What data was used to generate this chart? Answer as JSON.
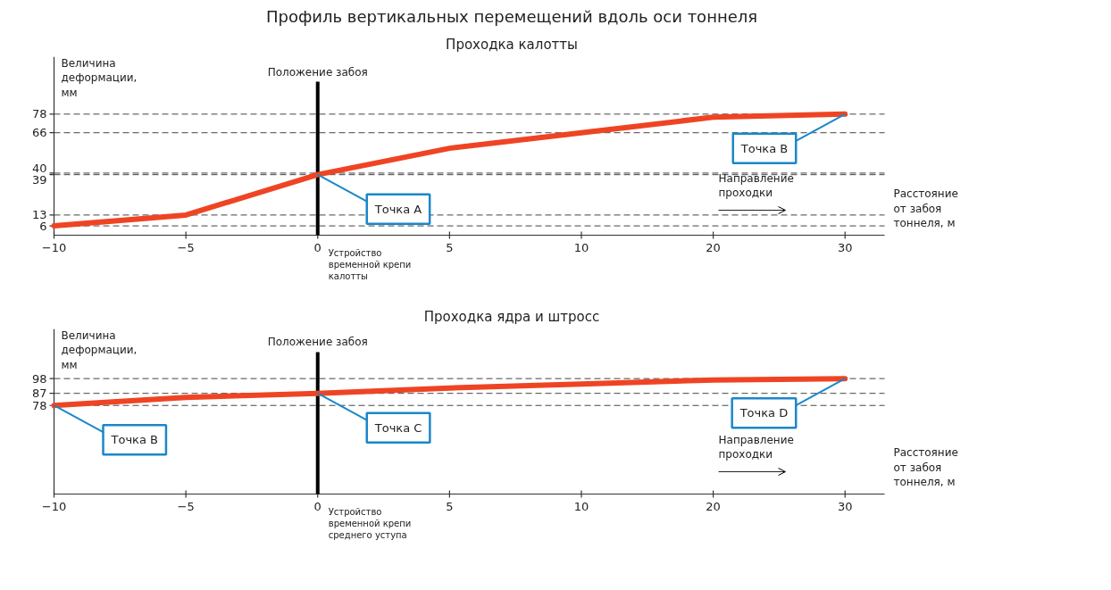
{
  "chart_data": [
    {
      "type": "line",
      "title": "Профиль вертикальных перемещений вдоль оси тоннеля",
      "subtitle": "Проходка калотты",
      "xlabel": "Расстояние от забоя тоннеля, м",
      "ylabel": "Величина деформации, мм",
      "categories": [
        "−10",
        "−5",
        "0",
        "5",
        "10",
        "20",
        "30"
      ],
      "series": [
        {
          "color": "#ef4423",
          "values": [
            6,
            13,
            39,
            56,
            66,
            76,
            78
          ]
        }
      ],
      "ylim": [
        0,
        115
      ],
      "yticks": [
        6,
        13,
        39,
        40,
        66,
        78
      ],
      "grid": "y",
      "ref_lines": [
        {
          "axis": "x",
          "value": "0",
          "label": "Положение забоя",
          "color": "#000000"
        }
      ],
      "annotations": [
        {
          "text": "Точка А",
          "x": "0",
          "y": 39
        },
        {
          "text": "Точка В",
          "x": "30",
          "y": 78
        },
        "Устройство временной крепи калотты",
        "Направление проходки"
      ]
    },
    {
      "type": "line",
      "title": "Проходка ядра и штросс",
      "xlabel": "Расстояние от забоя тоннеля, м",
      "ylabel": "Величина деформации, мм",
      "categories": [
        "−10",
        "−5",
        "0",
        "5",
        "10",
        "20",
        "30"
      ],
      "series": [
        {
          "color": "#ef4423",
          "values": [
            78,
            84,
            87,
            91,
            94,
            97,
            98
          ]
        }
      ],
      "ylim": [
        12,
        135
      ],
      "yticks": [
        78,
        87,
        98
      ],
      "grid": "y",
      "ref_lines": [
        {
          "axis": "x",
          "value": "0",
          "label": "Положение забоя",
          "color": "#000000"
        }
      ],
      "annotations": [
        {
          "text": "Точка В",
          "x": "−10",
          "y": 78
        },
        {
          "text": "Точка С",
          "x": "0",
          "y": 87
        },
        {
          "text": "Точка D",
          "x": "30",
          "y": 98
        },
        "Устройство временной крепи среднего уступа",
        "Направление проходки"
      ]
    }
  ]
}
